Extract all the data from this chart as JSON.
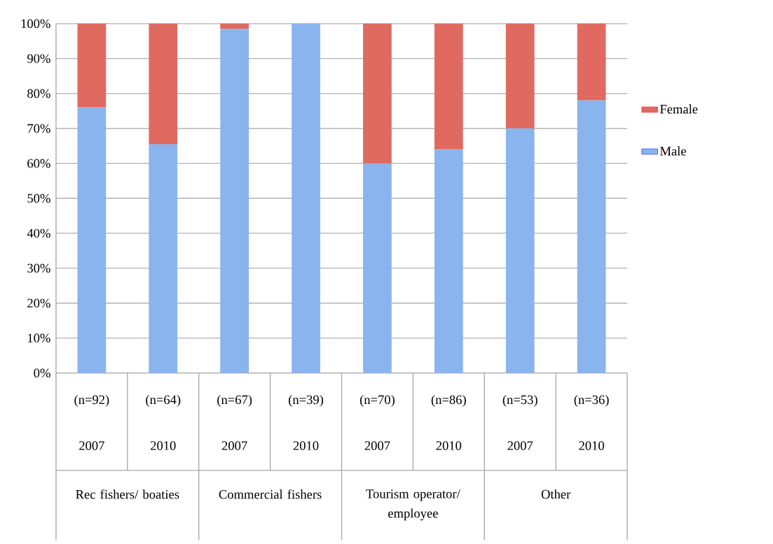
{
  "chart_data": {
    "type": "bar",
    "stacked": true,
    "categories": [
      "(n=92) 2007",
      "(n=64) 2010",
      "(n=67) 2007",
      "(n=39) 2010",
      "(n=70) 2007",
      "(n=86) 2010",
      "(n=53) 2007",
      "(n=36) 2010"
    ],
    "series": [
      {
        "name": "Male",
        "color": "#8ab4ee",
        "values": [
          76,
          65.5,
          98.5,
          100,
          60,
          64,
          70,
          78
        ]
      },
      {
        "name": "Female",
        "color": "#e06a60",
        "values": [
          24,
          34.5,
          1.5,
          0,
          40,
          36,
          30,
          22
        ]
      }
    ],
    "ylim": [
      0,
      100
    ],
    "yticks": [
      {
        "value": 0,
        "label": "0%"
      },
      {
        "value": 10,
        "label": "10%"
      },
      {
        "value": 20,
        "label": "20%"
      },
      {
        "value": 30,
        "label": "30%"
      },
      {
        "value": 40,
        "label": "40%"
      },
      {
        "value": 50,
        "label": "50%"
      },
      {
        "value": 60,
        "label": "60%"
      },
      {
        "value": 70,
        "label": "70%"
      },
      {
        "value": 80,
        "label": "80%"
      },
      {
        "value": 90,
        "label": "90%"
      },
      {
        "value": 100,
        "label": "100%"
      }
    ],
    "grid": "y",
    "legend": "right",
    "annotations": [
      "Rec fishers/ boaties",
      "Commercial fishers",
      "Tourism operator/ employee",
      "Other"
    ]
  }
}
